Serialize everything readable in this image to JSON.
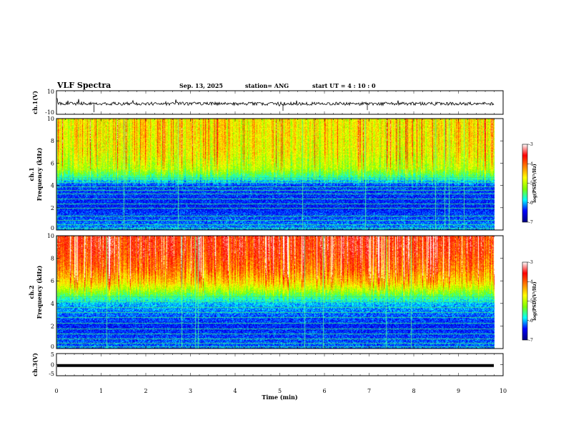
{
  "header": {
    "title": "VLF Spectra",
    "date": "Sep. 13, 2025",
    "station": "station= ANG",
    "start_ut": "start  UT =   4 : 10 : 0"
  },
  "chart_data": {
    "type": "heatmap",
    "xlabel": "Time  (min)",
    "xlim": [
      0,
      10
    ],
    "x_ticks": [
      "0",
      "1",
      "2",
      "3",
      "4",
      "5",
      "6",
      "7",
      "8",
      "9",
      "10"
    ],
    "panels": [
      {
        "name": "ch.1(V)",
        "kind": "waveform",
        "ylabel": "ch.1(V)",
        "ylim": [
          -10,
          10
        ],
        "y_ticks": [
          "10",
          "-10"
        ],
        "baseline": -1,
        "data_end_min": 9.8
      },
      {
        "name": "ch.1 spectrogram",
        "kind": "spectrogram",
        "ylabel": "ch.1\nFrequency (kHz)",
        "ylim": [
          0,
          10
        ],
        "y_ticks": [
          "0",
          "2",
          "4",
          "6",
          "8",
          "10"
        ],
        "data_end_min": 9.8,
        "colorbar": {
          "label": "log(PSD)(V²/Hz)",
          "range": [
            -7,
            -3
          ],
          "ticks": [
            "-3",
            "-4",
            "-5",
            "-6",
            "-7"
          ],
          "colors": [
            "#00007f",
            "#0000ff",
            "#00ffff",
            "#7fff00",
            "#ffff00",
            "#ff7f00",
            "#ff0000",
            "#ffffff"
          ]
        },
        "band_profile_kHz": [
          [
            0,
            -6.1
          ],
          [
            2,
            -6.4
          ],
          [
            4,
            -6.3
          ],
          [
            4.7,
            -5.7
          ],
          [
            5.5,
            -5.1
          ],
          [
            7,
            -4.8
          ],
          [
            8.5,
            -4.7
          ],
          [
            10,
            -4.7
          ]
        ],
        "tone_lines_kHz": [
          0.2,
          0.5,
          0.9,
          1.3,
          2.0,
          2.4,
          2.8,
          3.3,
          3.6,
          3.9,
          4.3,
          4.55,
          4.75
        ]
      },
      {
        "name": "ch.2 spectrogram",
        "kind": "spectrogram",
        "ylabel": "ch.2\nFrequency (kHz)",
        "ylim": [
          0,
          10
        ],
        "y_ticks": [
          "0",
          "2",
          "4",
          "6",
          "8",
          "10"
        ],
        "data_end_min": 9.8,
        "colorbar": {
          "label": "log(PSD)(V²/Hz)",
          "range": [
            -7,
            -3
          ],
          "ticks": [
            "-3",
            "-4",
            "-5",
            "-6",
            "-7"
          ],
          "colors": [
            "#00007f",
            "#0000ff",
            "#00ffff",
            "#7fff00",
            "#ffff00",
            "#ff7f00",
            "#ff0000",
            "#ffffff"
          ]
        },
        "band_profile_kHz": [
          [
            0,
            -6.2
          ],
          [
            2,
            -6.4
          ],
          [
            4,
            -6.0
          ],
          [
            4.7,
            -5.5
          ],
          [
            5.8,
            -4.6
          ],
          [
            7,
            -4.1
          ],
          [
            8.5,
            -3.8
          ],
          [
            10,
            -3.7
          ]
        ],
        "tone_lines_kHz": [
          0.2,
          0.5,
          0.9,
          1.3,
          1.8,
          2.3,
          2.8,
          3.2,
          3.7,
          4.2,
          4.6
        ]
      },
      {
        "name": "ch.3(V)",
        "kind": "waveform",
        "ylabel": "ch.3(V)",
        "ylim": [
          -5,
          5
        ],
        "y_ticks": [
          "5",
          "0",
          "-5"
        ],
        "baseline": -0.4,
        "data_end_min": 9.8
      }
    ]
  }
}
